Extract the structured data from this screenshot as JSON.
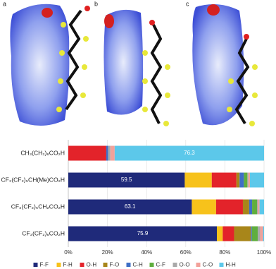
{
  "panels": [
    "a",
    "b",
    "c"
  ],
  "chart_data": {
    "type": "stacked_barh",
    "categories": [
      "CH₃(CH₂)₆CO₂H",
      "CF₃(CF₂)₅CH(Me)CO₂H",
      "CF₃(CF₂)₅CH₂CO₂H",
      "CF₃(CF₂)₆CO₂H"
    ],
    "series": [
      {
        "name": "F-F",
        "color": "#1f2a7a",
        "values": [
          0,
          59.5,
          63.1,
          75.9
        ]
      },
      {
        "name": "F-H",
        "color": "#f7c21b",
        "values": [
          0,
          13.8,
          12.4,
          3.0
        ]
      },
      {
        "name": "O-H",
        "color": "#e3232a",
        "values": [
          19.4,
          12.6,
          13.7,
          5.8
        ]
      },
      {
        "name": "F-O",
        "color": "#a8861a",
        "values": [
          0,
          1.6,
          3.2,
          8.6
        ]
      },
      {
        "name": "C-H",
        "color": "#3f6fc6",
        "values": [
          1.0,
          2.2,
          1.5,
          0.5
        ]
      },
      {
        "name": "C-F",
        "color": "#5fae3e",
        "values": [
          0,
          1.8,
          2.5,
          3.0
        ]
      },
      {
        "name": "O-O",
        "color": "#a9a9a9",
        "values": [
          1.1,
          0.5,
          0.6,
          1.2
        ]
      },
      {
        "name": "C-O",
        "color": "#f2a19a",
        "values": [
          2.2,
          0.8,
          0.7,
          1.5
        ]
      },
      {
        "name": "H-H",
        "color": "#5cc8ea",
        "values": [
          76.3,
          7.2,
          2.3,
          0.5
        ]
      }
    ],
    "xlim": [
      0,
      100
    ],
    "xticks": [
      {
        "value": 0,
        "label": "0%"
      },
      {
        "value": 20,
        "label": "20%"
      },
      {
        "value": 40,
        "label": "40%"
      },
      {
        "value": 60,
        "label": "60%"
      },
      {
        "value": 80,
        "label": "80%"
      },
      {
        "value": 100,
        "label": "100%"
      }
    ],
    "grid": true
  }
}
